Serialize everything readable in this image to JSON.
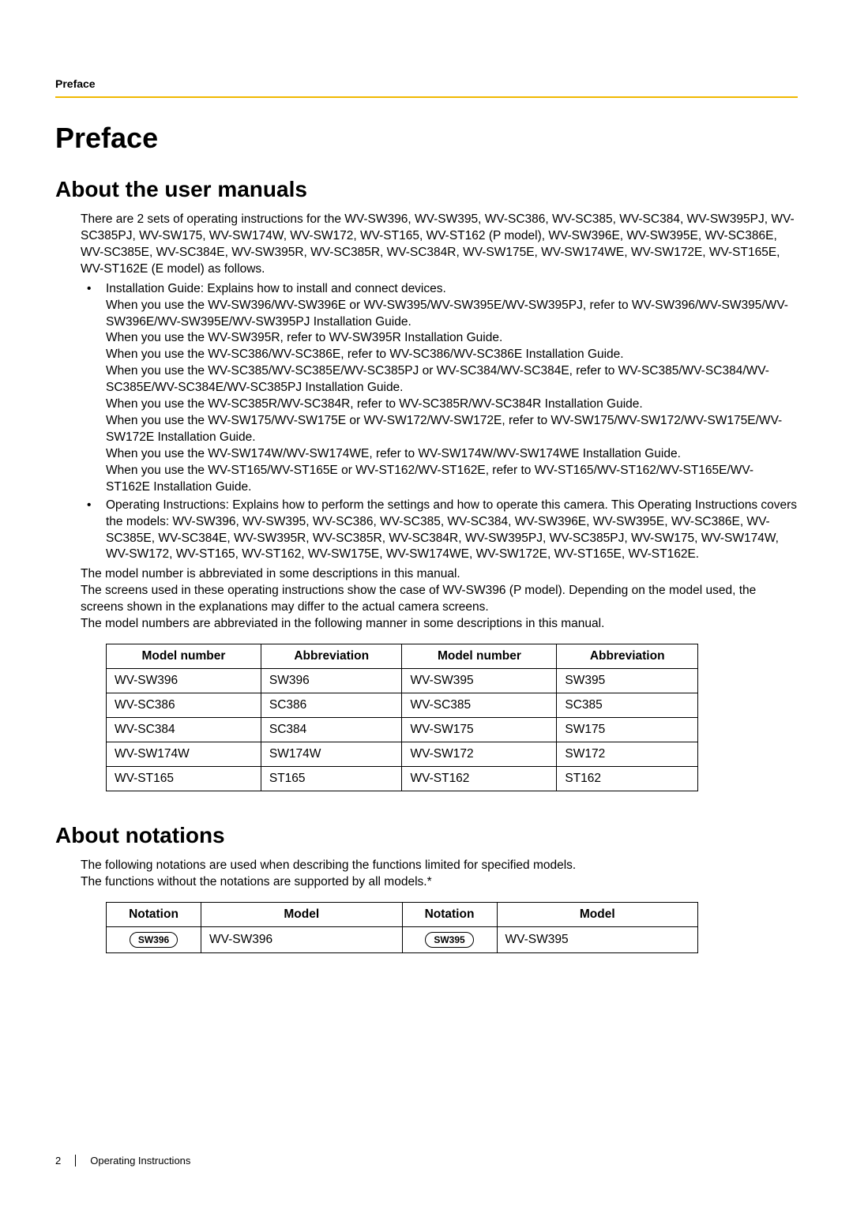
{
  "header": {
    "label": "Preface"
  },
  "title": "Preface",
  "section_manuals": {
    "heading": "About the user manuals",
    "intro": "There are 2 sets of operating instructions for the WV-SW396, WV-SW395, WV-SC386, WV-SC385, WV-SC384, WV-SW395PJ, WV-SC385PJ, WV-SW175, WV-SW174W, WV-SW172, WV-ST165, WV-ST162 (P model), WV-SW396E, WV-SW395E, WV-SC386E, WV-SC385E, WV-SC384E, WV-SW395R, WV-SC385R, WV-SC384R, WV-SW175E, WV-SW174WE, WV-SW172E, WV-ST165E, WV-ST162E (E model) as follows.",
    "bullet1": "Installation Guide: Explains how to install and connect devices.\nWhen you use the WV-SW396/WV-SW396E or WV-SW395/WV-SW395E/WV-SW395PJ, refer to WV-SW396/WV-SW395/WV-SW396E/WV-SW395E/WV-SW395PJ Installation Guide.\nWhen you use the WV-SW395R, refer to WV-SW395R Installation Guide.\nWhen you use the WV-SC386/WV-SC386E, refer to WV-SC386/WV-SC386E Installation Guide.\nWhen you use the WV-SC385/WV-SC385E/WV-SC385PJ or WV-SC384/WV-SC384E, refer to WV-SC385/WV-SC384/WV-SC385E/WV-SC384E/WV-SC385PJ Installation Guide.\nWhen you use the WV-SC385R/WV-SC384R, refer to WV-SC385R/WV-SC384R Installation Guide.\nWhen you use the WV-SW175/WV-SW175E or WV-SW172/WV-SW172E, refer to WV-SW175/WV-SW172/WV-SW175E/WV-SW172E Installation Guide.\nWhen you use the WV-SW174W/WV-SW174WE, refer to WV-SW174W/WV-SW174WE Installation Guide.\nWhen you use the WV-ST165/WV-ST165E or WV-ST162/WV-ST162E, refer to WV-ST165/WV-ST162/WV-ST165E/WV-ST162E Installation Guide.",
    "bullet2": "Operating Instructions: Explains how to perform the settings and how to operate this camera. This Operating Instructions covers the models: WV-SW396, WV-SW395, WV-SC386, WV-SC385, WV-SC384, WV-SW396E, WV-SW395E, WV-SC386E, WV-SC385E, WV-SC384E, WV-SW395R, WV-SC385R, WV-SC384R, WV-SW395PJ, WV-SC385PJ, WV-SW175, WV-SW174W, WV-SW172, WV-ST165, WV-ST162, WV-SW175E, WV-SW174WE, WV-SW172E, WV-ST165E, WV-ST162E.",
    "after": "The model number is abbreviated in some descriptions in this manual.\nThe screens used in these operating instructions show the case of WV-SW396 (P model). Depending on the model used, the screens shown in the explanations may differ to the actual camera screens.\nThe model numbers are abbreviated in the following manner in some descriptions in this manual."
  },
  "abbrev_table": {
    "headers": [
      "Model number",
      "Abbreviation",
      "Model number",
      "Abbreviation"
    ],
    "rows": [
      [
        "WV-SW396",
        "SW396",
        "WV-SW395",
        "SW395"
      ],
      [
        "WV-SC386",
        "SC386",
        "WV-SC385",
        "SC385"
      ],
      [
        "WV-SC384",
        "SC384",
        "WV-SW175",
        "SW175"
      ],
      [
        "WV-SW174W",
        "SW174W",
        "WV-SW172",
        "SW172"
      ],
      [
        "WV-ST165",
        "ST165",
        "WV-ST162",
        "ST162"
      ]
    ]
  },
  "section_notations": {
    "heading": "About notations",
    "intro": "The following notations are used when describing the functions limited for specified models.\nThe functions without the notations are supported by all models.*"
  },
  "notation_table": {
    "headers": [
      "Notation",
      "Model",
      "Notation",
      "Model"
    ],
    "rows": [
      {
        "n1": "SW396",
        "m1": "WV-SW396",
        "n2": "SW395",
        "m2": "WV-SW395"
      }
    ]
  },
  "footer": {
    "page": "2",
    "label": "Operating Instructions"
  }
}
